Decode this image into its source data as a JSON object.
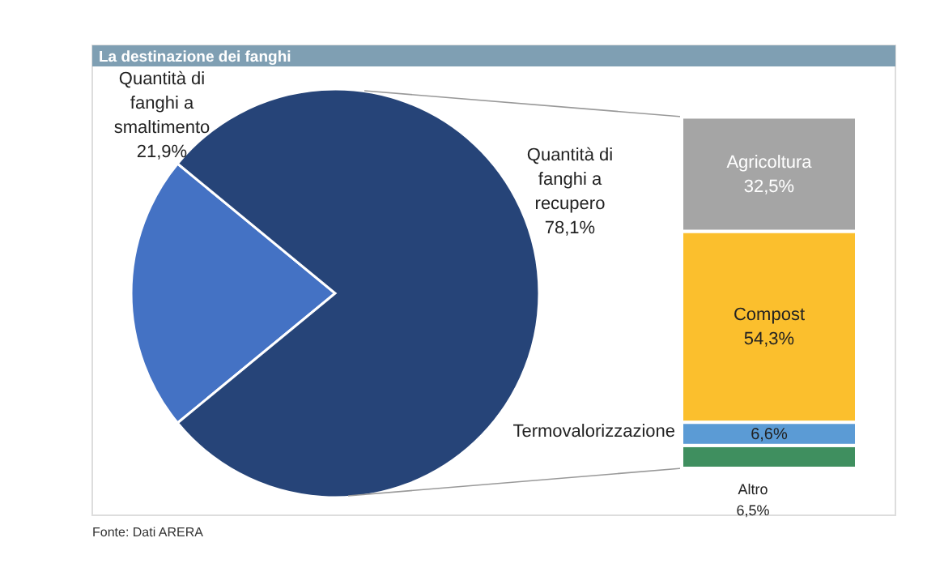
{
  "chart_data": [
    {
      "type": "pie",
      "title": "La destinazione dei fanghi",
      "categories": [
        "Quantità di fanghi a smaltimento",
        "Quantità di fanghi a recupero"
      ],
      "values": [
        21.9,
        78.1
      ],
      "colors": [
        "#4472c4",
        "#264478"
      ],
      "value_labels": [
        "21,9%",
        "78,1%"
      ],
      "annotations": [
        "Fonte: Dati ARERA"
      ]
    },
    {
      "type": "bar",
      "stacked": true,
      "categories": [
        null
      ],
      "ylim": [
        0,
        100
      ],
      "series": [
        {
          "name": "Altro",
          "color": "#3f8f5f",
          "values": [
            6.5
          ],
          "value_labels": [
            "6,5%"
          ]
        },
        {
          "name": "Termovalorizzazione",
          "color": "#5b9bd5",
          "values": [
            6.6
          ],
          "value_labels": [
            "6,6%"
          ]
        },
        {
          "name": "Compost",
          "color": "#fbbf2d",
          "values": [
            54.3
          ],
          "value_labels": [
            "54,3%"
          ]
        },
        {
          "name": "Agricoltura",
          "color": "#a5a5a5",
          "values": [
            32.5
          ],
          "value_labels": [
            "32,5%"
          ]
        }
      ]
    }
  ]
}
